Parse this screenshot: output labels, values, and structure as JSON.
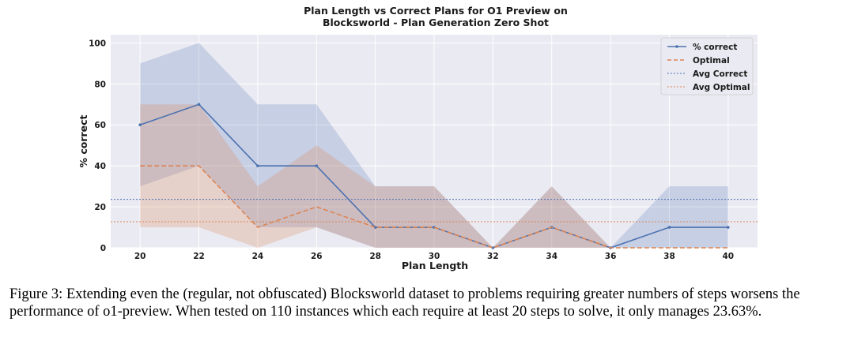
{
  "chart_data": {
    "type": "line",
    "title_lines": [
      "Plan Length vs Correct Plans for O1 Preview on",
      "Blocksworld - Plan Generation Zero Shot"
    ],
    "xlabel": "Plan Length",
    "ylabel": "% correct",
    "xlim": [
      19,
      41
    ],
    "ylim": [
      0,
      104
    ],
    "xticks": [
      20,
      22,
      24,
      26,
      28,
      30,
      32,
      34,
      36,
      38,
      40
    ],
    "yticks": [
      0,
      20,
      40,
      60,
      80,
      100
    ],
    "grid": true,
    "legend_position": "top-right",
    "series": [
      {
        "name": "% correct",
        "style": "solid-line-markers",
        "color": "#4c72b0",
        "x": [
          20,
          22,
          24,
          26,
          28,
          30,
          32,
          34,
          36,
          38,
          40
        ],
        "y": [
          60,
          70,
          40,
          40,
          10,
          10,
          0,
          10,
          0,
          10,
          10
        ],
        "band_lower": [
          30,
          40,
          10,
          10,
          0,
          0,
          0,
          0,
          0,
          0,
          0
        ],
        "band_upper": [
          90,
          100,
          70,
          70,
          30,
          30,
          0,
          30,
          0,
          30,
          30
        ]
      },
      {
        "name": "Optimal",
        "style": "dashed-line",
        "color": "#dd8452",
        "x": [
          20,
          22,
          24,
          26,
          28,
          30,
          32,
          34,
          36,
          38,
          40
        ],
        "y": [
          40,
          40,
          10,
          20,
          10,
          10,
          0,
          10,
          0,
          0,
          0
        ],
        "band_lower": [
          10,
          10,
          0,
          10,
          0,
          0,
          0,
          0,
          0,
          0,
          0
        ],
        "band_upper": [
          70,
          70,
          30,
          50,
          30,
          30,
          0,
          30,
          0,
          0,
          0
        ]
      }
    ],
    "reference_lines": [
      {
        "name": "Avg Correct",
        "value": 23.63,
        "color": "#4c72b0",
        "style": "dotted"
      },
      {
        "name": "Avg Optimal",
        "value": 12.7,
        "color": "#dd8452",
        "style": "dotted"
      }
    ]
  },
  "caption": {
    "text": "Figure 3: Extending even the (regular, not obfuscated) Blocksworld dataset to problems requiring greater numbers of steps worsens the performance of o1-preview. When tested on 110 instances which each require at least 20 steps to solve, it only manages 23.63%."
  }
}
